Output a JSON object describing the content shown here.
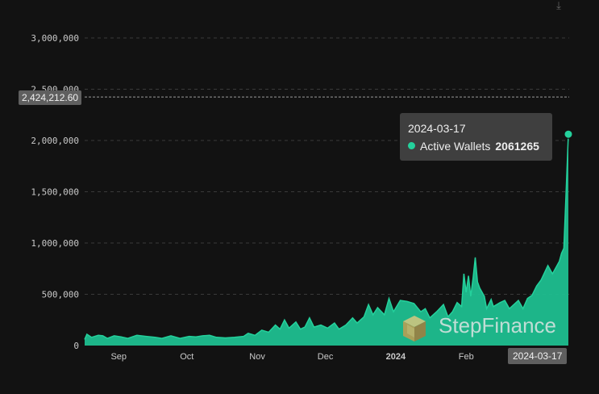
{
  "colors": {
    "background": "#121212",
    "series": "#24d19c",
    "area": "#1fbf90",
    "grid": "#3a3a3a",
    "tick_text": "#c9c9c9"
  },
  "icons": {
    "download": "download-icon",
    "watermark": "stepfinance-logo"
  },
  "watermark": {
    "text": "StepFinance"
  },
  "crosshair": {
    "value_label": "2,424,212.60"
  },
  "tooltip": {
    "date": "2024-03-17",
    "series_label": "Active Wallets",
    "value": "2061265"
  },
  "x_pill": "2024-03-17",
  "chart_data": {
    "type": "area",
    "grid": true,
    "legend": "none",
    "y_ticks": [
      "0",
      "500,000",
      "1,000,000",
      "1,500,000",
      "2,000,000",
      "2,500,000",
      "3,000,000"
    ],
    "ylim": [
      0,
      3000000
    ],
    "x_ticks": [
      "Sep",
      "Oct",
      "Nov",
      "Dec",
      "2024",
      "Feb"
    ],
    "xlim": [
      "2023-08-17",
      "2024-03-17"
    ],
    "series": [
      {
        "name": "Active Wallets",
        "points": [
          [
            "2023-08-17",
            60000
          ],
          [
            "2023-08-18",
            110000
          ],
          [
            "2023-08-20",
            80000
          ],
          [
            "2023-08-23",
            100000
          ],
          [
            "2023-08-25",
            95000
          ],
          [
            "2023-08-27",
            70000
          ],
          [
            "2023-08-30",
            95000
          ],
          [
            "2023-09-02",
            85000
          ],
          [
            "2023-09-05",
            70000
          ],
          [
            "2023-09-09",
            100000
          ],
          [
            "2023-09-13",
            90000
          ],
          [
            "2023-09-17",
            80000
          ],
          [
            "2023-09-20",
            70000
          ],
          [
            "2023-09-24",
            95000
          ],
          [
            "2023-09-28",
            70000
          ],
          [
            "2023-10-02",
            90000
          ],
          [
            "2023-10-05",
            85000
          ],
          [
            "2023-10-08",
            95000
          ],
          [
            "2023-10-11",
            100000
          ],
          [
            "2023-10-14",
            80000
          ],
          [
            "2023-10-18",
            75000
          ],
          [
            "2023-10-22",
            80000
          ],
          [
            "2023-10-26",
            90000
          ],
          [
            "2023-10-28",
            120000
          ],
          [
            "2023-10-31",
            100000
          ],
          [
            "2023-11-03",
            150000
          ],
          [
            "2023-11-06",
            130000
          ],
          [
            "2023-11-09",
            200000
          ],
          [
            "2023-11-11",
            160000
          ],
          [
            "2023-11-13",
            250000
          ],
          [
            "2023-11-15",
            170000
          ],
          [
            "2023-11-18",
            230000
          ],
          [
            "2023-11-20",
            160000
          ],
          [
            "2023-11-22",
            180000
          ],
          [
            "2023-11-24",
            270000
          ],
          [
            "2023-11-26",
            180000
          ],
          [
            "2023-11-29",
            200000
          ],
          [
            "2023-12-02",
            170000
          ],
          [
            "2023-12-05",
            220000
          ],
          [
            "2023-12-07",
            160000
          ],
          [
            "2023-12-10",
            200000
          ],
          [
            "2023-12-13",
            270000
          ],
          [
            "2023-12-15",
            220000
          ],
          [
            "2023-12-18",
            280000
          ],
          [
            "2023-12-20",
            400000
          ],
          [
            "2023-12-22",
            300000
          ],
          [
            "2023-12-24",
            370000
          ],
          [
            "2023-12-27",
            300000
          ],
          [
            "2023-12-29",
            460000
          ],
          [
            "2023-12-31",
            330000
          ],
          [
            "2024-01-03",
            440000
          ],
          [
            "2024-01-06",
            430000
          ],
          [
            "2024-01-09",
            410000
          ],
          [
            "2024-01-12",
            330000
          ],
          [
            "2024-01-14",
            360000
          ],
          [
            "2024-01-16",
            270000
          ],
          [
            "2024-01-19",
            330000
          ],
          [
            "2024-01-22",
            400000
          ],
          [
            "2024-01-24",
            280000
          ],
          [
            "2024-01-26",
            330000
          ],
          [
            "2024-01-28",
            420000
          ],
          [
            "2024-01-30",
            380000
          ],
          [
            "2024-01-31",
            700000
          ],
          [
            "2024-02-01",
            520000
          ],
          [
            "2024-02-02",
            680000
          ],
          [
            "2024-02-03",
            480000
          ],
          [
            "2024-02-04",
            650000
          ],
          [
            "2024-02-05",
            860000
          ],
          [
            "2024-02-06",
            620000
          ],
          [
            "2024-02-07",
            560000
          ],
          [
            "2024-02-09",
            480000
          ],
          [
            "2024-02-10",
            360000
          ],
          [
            "2024-02-12",
            450000
          ],
          [
            "2024-02-13",
            380000
          ],
          [
            "2024-02-16",
            420000
          ],
          [
            "2024-02-18",
            440000
          ],
          [
            "2024-02-20",
            360000
          ],
          [
            "2024-02-23",
            420000
          ],
          [
            "2024-02-24",
            440000
          ],
          [
            "2024-02-26",
            360000
          ],
          [
            "2024-02-28",
            460000
          ],
          [
            "2024-03-01",
            490000
          ],
          [
            "2024-03-03",
            580000
          ],
          [
            "2024-03-05",
            640000
          ],
          [
            "2024-03-08",
            780000
          ],
          [
            "2024-03-10",
            700000
          ],
          [
            "2024-03-13",
            820000
          ],
          [
            "2024-03-14",
            900000
          ],
          [
            "2024-03-15",
            950000
          ],
          [
            "2024-03-16",
            1500000
          ],
          [
            "2024-03-17",
            2061265
          ]
        ]
      }
    ]
  }
}
